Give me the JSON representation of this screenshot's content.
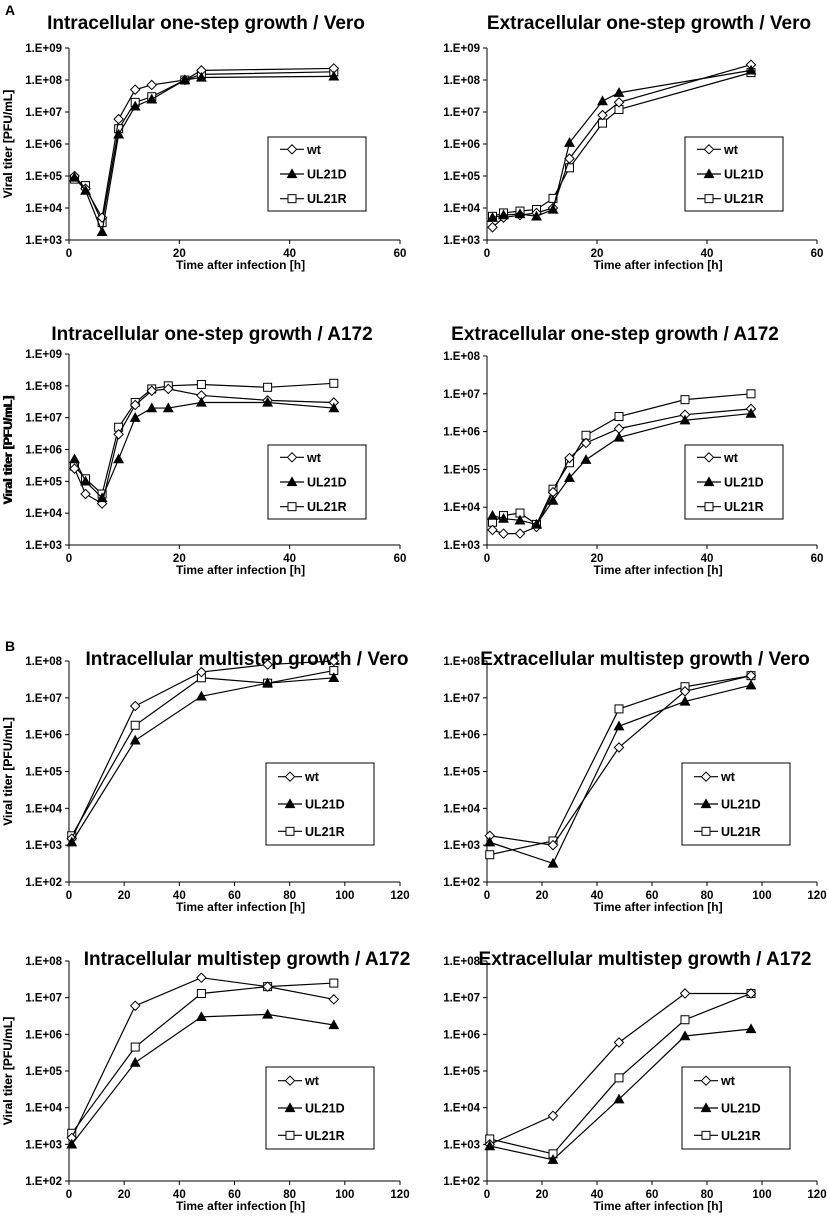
{
  "panel_labels": [
    "A",
    "B"
  ],
  "colors": {
    "axis": "#000000",
    "line": "#000000",
    "background": "#ffffff"
  },
  "chart_data": [
    {
      "type": "line",
      "title": "Intracellular one-step growth / Vero",
      "xlabel": "Time after infection [h]",
      "ylabel": "Viral titer [PFU/mL]",
      "xlim": [
        0,
        60
      ],
      "xticks": [
        0,
        20,
        40,
        60
      ],
      "yscale": "log",
      "yexp": [
        3,
        9
      ],
      "ytick_labels": [
        "1.E+03",
        "1.E+04",
        "1.E+05",
        "1.E+06",
        "1.E+07",
        "1.E+08",
        "1.E+09"
      ],
      "legend": [
        "wt",
        "UL21D",
        "UL21R"
      ],
      "series": [
        {
          "name": "wt",
          "marker": "diamond",
          "x": [
            1,
            3,
            6,
            9,
            12,
            15,
            21,
            24,
            48
          ],
          "y": [
            100000,
            40000,
            5000,
            6000000,
            50000000,
            70000000,
            100000000,
            200000000,
            230000000
          ]
        },
        {
          "name": "UL21D",
          "marker": "triangle",
          "x": [
            1,
            3,
            6,
            9,
            12,
            15,
            21,
            24,
            48
          ],
          "y": [
            90000,
            35000,
            1800,
            2000000,
            15000000,
            25000000,
            100000000,
            120000000,
            130000000
          ]
        },
        {
          "name": "UL21R",
          "marker": "square",
          "x": [
            1,
            3,
            6,
            9,
            12,
            15,
            21,
            24,
            48
          ],
          "y": [
            80000,
            50000,
            3500,
            3000000,
            20000000,
            30000000,
            100000000,
            150000000,
            180000000
          ]
        }
      ]
    },
    {
      "type": "line",
      "title": "Extracellular one-step growth / Vero",
      "xlabel": "Time after infection [h]",
      "ylabel": "Viral titer [PFU/mL]",
      "xlim": [
        0,
        60
      ],
      "xticks": [
        0,
        20,
        40,
        60
      ],
      "yscale": "log",
      "yexp": [
        3,
        9
      ],
      "ytick_labels": [
        "1.E+03",
        "1.E+04",
        "1.E+05",
        "1.E+06",
        "1.E+07",
        "1.E+08",
        "1.E+09"
      ],
      "legend": [
        "wt",
        "UL21D",
        "UL21R"
      ],
      "series": [
        {
          "name": "wt",
          "marker": "diamond",
          "x": [
            1,
            3,
            6,
            9,
            12,
            15,
            21,
            24,
            48
          ],
          "y": [
            2500,
            5000,
            6000,
            7000,
            10000,
            350000,
            8000000,
            20000000,
            300000000
          ]
        },
        {
          "name": "UL21D",
          "marker": "triangle",
          "x": [
            1,
            3,
            6,
            9,
            12,
            15,
            21,
            24,
            48
          ],
          "y": [
            5000,
            6000,
            6500,
            5500,
            9000,
            1100000,
            22000000,
            40000000,
            200000000
          ]
        },
        {
          "name": "UL21R",
          "marker": "square",
          "x": [
            1,
            3,
            6,
            9,
            12,
            15,
            21,
            24,
            48
          ],
          "y": [
            5500,
            7000,
            8000,
            9000,
            20000,
            180000,
            4500000,
            12000000,
            170000000
          ]
        }
      ]
    },
    {
      "type": "line",
      "title": "Intracellular one-step growth / A172",
      "xlabel": "Time after infection [h]",
      "ylabel": "Viral titer [PFU/mL]",
      "xlim": [
        0,
        60
      ],
      "xticks": [
        0,
        20,
        40,
        60
      ],
      "yscale": "log",
      "yexp": [
        3,
        9
      ],
      "ytick_labels": [
        "1.E+03",
        "1.E+04",
        "1.E+05",
        "1.E+06",
        "1.E+07",
        "1.E+08",
        "1.E+09"
      ],
      "legend": [
        "wt",
        "UL21D",
        "UL21R"
      ],
      "series": [
        {
          "name": "wt",
          "marker": "diamond",
          "x": [
            1,
            3,
            6,
            9,
            12,
            15,
            18,
            24,
            36,
            48
          ],
          "y": [
            250000,
            40000,
            20000,
            3000000,
            25000000,
            70000000,
            80000000,
            50000000,
            35000000,
            30000000
          ]
        },
        {
          "name": "UL21D",
          "marker": "triangle",
          "x": [
            1,
            3,
            6,
            9,
            12,
            15,
            18,
            24,
            36,
            48
          ],
          "y": [
            500000,
            100000,
            30000,
            500000,
            10000000,
            20000000,
            20000000,
            30000000,
            30000000,
            20000000
          ]
        },
        {
          "name": "UL21R",
          "marker": "square",
          "x": [
            1,
            3,
            6,
            9,
            12,
            15,
            18,
            24,
            36,
            48
          ],
          "y": [
            300000,
            120000,
            40000,
            5000000,
            30000000,
            80000000,
            100000000,
            110000000,
            90000000,
            120000000
          ]
        }
      ]
    },
    {
      "type": "line",
      "title": "Extracellular one-step growth / A172",
      "xlabel": "Time after infection [h]",
      "ylabel": "Viral titer [PFU/mL]",
      "xlim": [
        0,
        60
      ],
      "xticks": [
        0,
        20,
        40,
        60
      ],
      "yscale": "log",
      "yexp": [
        3,
        8
      ],
      "ytick_labels": [
        "1.E+03",
        "1.E+04",
        "1.E+05",
        "1.E+06",
        "1.E+07",
        "1.E+08"
      ],
      "legend": [
        "wt",
        "UL21D",
        "UL21R"
      ],
      "series": [
        {
          "name": "wt",
          "marker": "diamond",
          "x": [
            1,
            3,
            6,
            9,
            12,
            15,
            18,
            24,
            36,
            48
          ],
          "y": [
            2500,
            2000,
            2000,
            3000,
            25000,
            200000,
            500000,
            1200000,
            2800000,
            4000000
          ]
        },
        {
          "name": "UL21D",
          "marker": "triangle",
          "x": [
            1,
            3,
            6,
            9,
            12,
            15,
            18,
            24,
            36,
            48
          ],
          "y": [
            6000,
            5000,
            4500,
            3500,
            15000,
            60000,
            180000,
            700000,
            2000000,
            3000000
          ]
        },
        {
          "name": "UL21R",
          "marker": "square",
          "x": [
            1,
            3,
            6,
            9,
            12,
            15,
            18,
            24,
            36,
            48
          ],
          "y": [
            4000,
            6000,
            7000,
            3500,
            30000,
            150000,
            800000,
            2500000,
            7000000,
            10000000
          ]
        }
      ]
    },
    {
      "type": "line",
      "title": "Intracellular multistep growth / Vero",
      "xlabel": "Time after infection [h]",
      "ylabel": "Viral titer [PFU/mL]",
      "xlim": [
        0,
        120
      ],
      "xticks": [
        0,
        20,
        40,
        60,
        80,
        100,
        120
      ],
      "yscale": "log",
      "yexp": [
        2,
        8
      ],
      "ytick_labels": [
        "1.E+02",
        "1.E+03",
        "1.E+04",
        "1.E+05",
        "1.E+06",
        "1.E+07",
        "1.E+08"
      ],
      "legend": [
        "wt",
        "UL21D",
        "UL21R"
      ],
      "series": [
        {
          "name": "wt",
          "marker": "diamond",
          "x": [
            1,
            24,
            48,
            72,
            96
          ],
          "y": [
            1500,
            6000000,
            50000000,
            80000000,
            100000000
          ]
        },
        {
          "name": "UL21D",
          "marker": "triangle",
          "x": [
            1,
            24,
            48,
            72,
            96
          ],
          "y": [
            1200,
            700000,
            11000000,
            25000000,
            35000000
          ]
        },
        {
          "name": "UL21R",
          "marker": "square",
          "x": [
            1,
            24,
            48,
            72,
            96
          ],
          "y": [
            1800,
            1800000,
            35000000,
            25000000,
            55000000
          ]
        }
      ]
    },
    {
      "type": "line",
      "title": "Extracellular multistep growth / Vero",
      "xlabel": "Time after infection [h]",
      "ylabel": "Viral titer [PFU/mL]",
      "xlim": [
        0,
        120
      ],
      "xticks": [
        0,
        20,
        40,
        60,
        80,
        100,
        120
      ],
      "yscale": "log",
      "yexp": [
        2,
        8
      ],
      "ytick_labels": [
        "1.E+02",
        "1.E+03",
        "1.E+04",
        "1.E+05",
        "1.E+06",
        "1.E+07",
        "1.E+08"
      ],
      "legend": [
        "wt",
        "UL21D",
        "UL21R"
      ],
      "series": [
        {
          "name": "wt",
          "marker": "diamond",
          "x": [
            1,
            24,
            48,
            72,
            96
          ],
          "y": [
            1800,
            1000,
            450000,
            15000000,
            40000000
          ]
        },
        {
          "name": "UL21D",
          "marker": "triangle",
          "x": [
            1,
            24,
            48,
            72,
            96
          ],
          "y": [
            1200,
            320,
            1700000,
            8000000,
            22000000
          ]
        },
        {
          "name": "UL21R",
          "marker": "square",
          "x": [
            1,
            24,
            48,
            72,
            96
          ],
          "y": [
            550,
            1300,
            5000000,
            20000000,
            40000000
          ]
        }
      ]
    },
    {
      "type": "line",
      "title": "Intracellular multistep growth / A172",
      "xlabel": "Time after infection [h]",
      "ylabel": "Viral titer [PFU/mL]",
      "xlim": [
        0,
        120
      ],
      "xticks": [
        0,
        20,
        40,
        60,
        80,
        100,
        120
      ],
      "yscale": "log",
      "yexp": [
        2,
        8
      ],
      "ytick_labels": [
        "1.E+02",
        "1.E+03",
        "1.E+04",
        "1.E+05",
        "1.E+06",
        "1.E+07",
        "1.E+08"
      ],
      "legend": [
        "wt",
        "UL21D",
        "UL21R"
      ],
      "series": [
        {
          "name": "wt",
          "marker": "diamond",
          "x": [
            1,
            24,
            48,
            72,
            96
          ],
          "y": [
            1500,
            6000000,
            35000000,
            20000000,
            9000000
          ]
        },
        {
          "name": "UL21D",
          "marker": "triangle",
          "x": [
            1,
            24,
            48,
            72,
            96
          ],
          "y": [
            1000,
            170000,
            3000000,
            3500000,
            1800000
          ]
        },
        {
          "name": "UL21R",
          "marker": "square",
          "x": [
            1,
            24,
            48,
            72,
            96
          ],
          "y": [
            2000,
            450000,
            13000000,
            20000000,
            25000000
          ]
        }
      ]
    },
    {
      "type": "line",
      "title": "Extracellular multistep growth / A172",
      "xlabel": "Time after infection [h]",
      "ylabel": "Viral titer [PFU/mL]",
      "xlim": [
        0,
        120
      ],
      "xticks": [
        0,
        20,
        40,
        60,
        80,
        100,
        120
      ],
      "yscale": "log",
      "yexp": [
        2,
        8
      ],
      "ytick_labels": [
        "1.E+02",
        "1.E+03",
        "1.E+04",
        "1.E+05",
        "1.E+06",
        "1.E+07",
        "1.E+08"
      ],
      "legend": [
        "wt",
        "UL21D",
        "UL21R"
      ],
      "series": [
        {
          "name": "wt",
          "marker": "diamond",
          "x": [
            1,
            24,
            48,
            72,
            96
          ],
          "y": [
            1000,
            6000,
            600000,
            13000000,
            13000000
          ]
        },
        {
          "name": "UL21D",
          "marker": "triangle",
          "x": [
            1,
            24,
            48,
            72,
            96
          ],
          "y": [
            900,
            380,
            17000,
            900000,
            1400000
          ]
        },
        {
          "name": "UL21R",
          "marker": "square",
          "x": [
            1,
            24,
            48,
            72,
            96
          ],
          "y": [
            1400,
            550,
            65000,
            2500000,
            13000000
          ]
        }
      ]
    }
  ]
}
